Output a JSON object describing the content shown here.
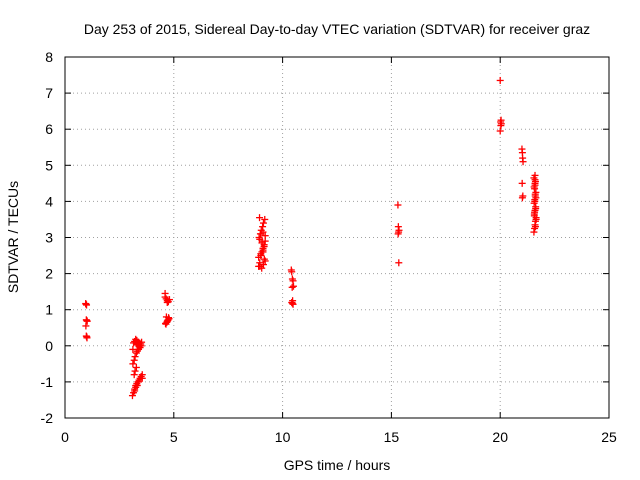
{
  "chart_data": {
    "type": "scatter",
    "title": "Day 253 of 2015, Sidereal Day-to-day VTEC variation (SDTVAR) for receiver graz",
    "xlabel": "GPS time / hours",
    "ylabel": "SDTVAR / TECUs",
    "xlim": [
      0,
      25
    ],
    "ylim": [
      -2,
      8
    ],
    "xticks": [
      0,
      5,
      10,
      15,
      20,
      25
    ],
    "yticks": [
      -2,
      -1,
      0,
      1,
      2,
      3,
      4,
      5,
      6,
      7,
      8
    ],
    "grid": true,
    "marker": "+",
    "color": "#ff0000",
    "series": [
      {
        "name": "graz",
        "x": [
          0.95,
          0.97,
          0.98,
          1.0,
          1.02,
          0.96,
          0.98,
          1.0,
          1.01,
          0.99,
          3.1,
          3.15,
          3.2,
          3.25,
          3.3,
          3.35,
          3.4,
          3.45,
          3.5,
          3.55,
          3.12,
          3.18,
          3.22,
          3.28,
          3.32,
          3.38,
          3.42,
          3.48,
          3.52,
          3.3,
          3.25,
          3.2,
          3.15,
          3.35,
          3.4,
          3.45,
          3.28,
          3.22,
          3.18,
          3.12,
          3.3,
          3.35,
          3.4,
          3.45,
          3.5,
          3.55,
          3.38,
          3.32,
          3.2,
          3.25,
          4.6,
          4.65,
          4.7,
          4.75,
          4.8,
          4.62,
          4.68,
          4.72,
          4.78,
          4.66,
          4.7,
          4.74,
          4.64,
          4.76,
          4.6,
          4.7,
          8.9,
          8.95,
          9.0,
          9.05,
          9.1,
          9.15,
          9.2,
          8.92,
          8.98,
          9.02,
          9.08,
          9.12,
          9.18,
          8.94,
          9.0,
          9.06,
          9.1,
          9.16,
          8.96,
          9.04,
          9.12,
          9.2,
          8.9,
          9.0,
          9.1,
          9.15,
          9.05,
          8.95,
          9.2,
          9.1,
          10.4,
          10.42,
          10.45,
          10.48,
          10.5,
          10.44,
          10.46,
          10.42,
          10.48,
          10.45,
          15.3,
          15.32,
          15.35,
          15.33,
          15.31,
          15.34,
          20.0,
          20.02,
          20.05,
          20.03,
          20.0,
          20.04,
          21.0,
          21.02,
          21.05,
          21.03,
          21.01,
          21.04,
          21.02,
          21.55,
          21.58,
          21.6,
          21.62,
          21.65,
          21.57,
          21.6,
          21.63,
          21.56,
          21.59,
          21.61,
          21.64,
          21.58,
          21.6,
          21.62,
          21.55,
          21.6,
          21.65,
          21.57,
          21.63,
          21.59,
          21.61,
          21.56,
          21.6,
          21.62,
          21.58,
          21.64,
          21.6
        ],
        "y": [
          1.17,
          1.15,
          0.72,
          0.7,
          0.68,
          0.55,
          0.27,
          0.25,
          0.22,
          1.13,
          -1.38,
          -1.3,
          -1.2,
          -1.1,
          -1.05,
          -1.0,
          -0.95,
          -0.9,
          -0.85,
          -0.8,
          -0.5,
          -0.4,
          -0.3,
          -0.2,
          -0.15,
          -0.1,
          0.0,
          0.05,
          0.1,
          0.15,
          0.18,
          0.12,
          0.08,
          0.02,
          -0.02,
          -0.05,
          -0.6,
          -0.7,
          -0.8,
          -0.1,
          0.05,
          0.1,
          0.08,
          0.05,
          0.0,
          -0.9,
          -1.0,
          -1.1,
          -1.25,
          -1.15,
          1.45,
          1.3,
          1.25,
          1.22,
          1.28,
          0.62,
          0.65,
          0.7,
          0.75,
          0.8,
          0.68,
          0.72,
          0.6,
          0.78,
          1.35,
          1.2,
          2.2,
          2.3,
          2.5,
          2.6,
          2.7,
          2.8,
          2.9,
          3.0,
          3.1,
          3.2,
          3.3,
          3.4,
          3.5,
          3.55,
          3.1,
          2.9,
          2.6,
          2.4,
          2.2,
          2.15,
          2.25,
          2.35,
          2.45,
          2.55,
          2.65,
          2.75,
          2.85,
          2.95,
          3.05,
          3.15,
          2.1,
          2.05,
          1.85,
          1.8,
          1.65,
          1.62,
          1.25,
          1.2,
          1.15,
          1.18,
          3.9,
          3.3,
          3.2,
          3.15,
          3.1,
          2.3,
          7.35,
          6.2,
          6.15,
          6.1,
          5.95,
          6.25,
          5.45,
          5.35,
          5.1,
          5.2,
          4.5,
          4.15,
          4.1,
          3.15,
          3.25,
          3.35,
          3.45,
          3.55,
          3.65,
          3.75,
          3.85,
          3.95,
          4.05,
          4.15,
          4.25,
          4.35,
          4.45,
          4.55,
          4.65,
          4.72,
          3.5,
          3.6,
          3.8,
          4.0,
          4.2,
          4.4,
          4.6,
          3.3,
          3.7,
          4.1,
          4.5
        ]
      }
    ]
  }
}
